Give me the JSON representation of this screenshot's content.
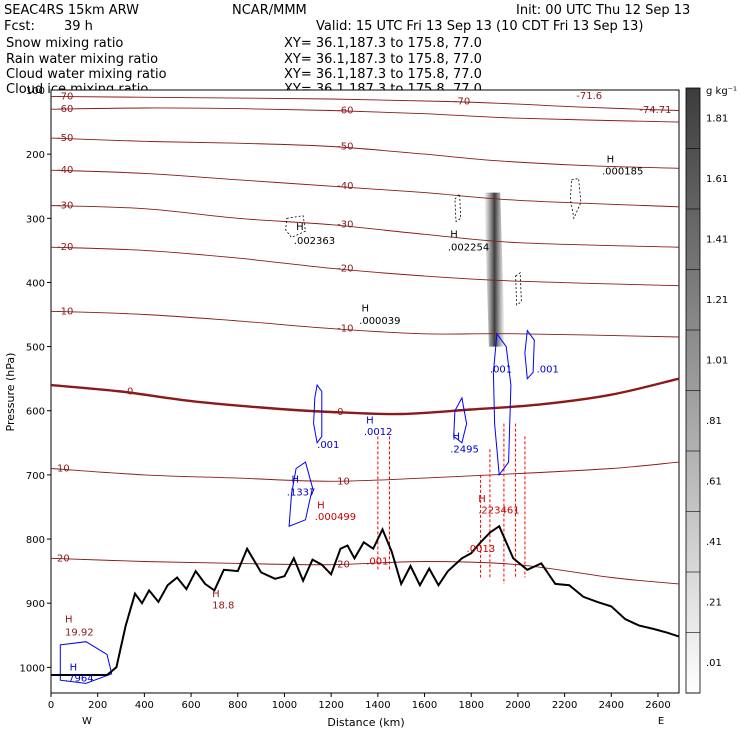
{
  "header": {
    "model": "SEAC4RS 15km ARW",
    "org": "NCAR/MMM",
    "init": "Init: 00 UTC Thu 12 Sep 13",
    "fcst_label": "Fcst:",
    "fcst_value": "39 h",
    "valid": "Valid: 15 UTC Fri 13 Sep 13 (10 CDT Fri 13 Sep 13)"
  },
  "fields": [
    {
      "name": "Snow mixing ratio",
      "xy": "XY=  36.1,187.3 to 175.8, 77.0",
      "color": "#000000"
    },
    {
      "name": "Rain water mixing ratio",
      "xy": "XY=  36.1,187.3 to 175.8, 77.0",
      "color": "#ff0000"
    },
    {
      "name": "Cloud water mixing ratio",
      "xy": "XY=  36.1,187.3 to 175.8, 77.0",
      "color": "#0000ff"
    },
    {
      "name": "Cloud ice mixing ratio",
      "xy": "XY=  36.1,187.3 to 175.8, 77.0",
      "color": "#000000"
    }
  ],
  "chart_data": {
    "type": "cross-section",
    "xlabel": "Distance (km)",
    "ylabel": "Pressure (hPa)",
    "x_ticks": [
      0,
      200,
      400,
      600,
      800,
      1000,
      1200,
      1400,
      1600,
      1800,
      2000,
      2200,
      2400,
      2600
    ],
    "y_ticks": [
      200,
      300,
      400,
      500,
      600,
      700,
      800,
      900,
      1000
    ],
    "y_top_label": "100",
    "xlim": [
      0,
      2690
    ],
    "ylim": [
      100,
      1040
    ],
    "west_label": "W",
    "east_label": "E",
    "colorbar": {
      "unit": "g kg⁻¹",
      "labels": [
        ".01",
        ".21",
        ".41",
        ".61",
        ".81",
        "1.01",
        "1.21",
        "1.41",
        "1.61",
        "1.81"
      ]
    },
    "temperature_contours": {
      "color": "#8b1a1a",
      "levels": [
        {
          "label": "-70",
          "pts": [
            [
              0,
              110
            ],
            [
              600,
              112
            ],
            [
              1200,
              114
            ],
            [
              1700,
              118
            ],
            [
              2000,
              122
            ],
            [
              2300,
              127
            ],
            [
              2690,
              132
            ]
          ]
        },
        {
          "label": "-60",
          "pts": [
            [
              0,
              130
            ],
            [
              400,
              128
            ],
            [
              800,
              129
            ],
            [
              1200,
              132
            ],
            [
              1600,
              137
            ],
            [
              2000,
              144
            ],
            [
              2690,
              150
            ]
          ]
        },
        {
          "label": "-50",
          "pts": [
            [
              0,
              175
            ],
            [
              400,
              180
            ],
            [
              800,
              183
            ],
            [
              1200,
              188
            ],
            [
              1600,
              200
            ],
            [
              1900,
              210
            ],
            [
              2300,
              218
            ],
            [
              2690,
              222
            ]
          ]
        },
        {
          "label": "-40",
          "pts": [
            [
              0,
              225
            ],
            [
              400,
              230
            ],
            [
              800,
              240
            ],
            [
              1200,
              250
            ],
            [
              1600,
              260
            ],
            [
              2000,
              272
            ],
            [
              2690,
              282
            ]
          ]
        },
        {
          "label": "-30",
          "pts": [
            [
              0,
              280
            ],
            [
              400,
              285
            ],
            [
              800,
              300
            ],
            [
              1200,
              310
            ],
            [
              1600,
              325
            ],
            [
              2000,
              338
            ],
            [
              2690,
              345
            ]
          ]
        },
        {
          "label": "-20",
          "pts": [
            [
              0,
              345
            ],
            [
              400,
              350
            ],
            [
              800,
              362
            ],
            [
              1200,
              378
            ],
            [
              1600,
              390
            ],
            [
              2000,
              398
            ],
            [
              2690,
              405
            ]
          ]
        },
        {
          "label": "-10",
          "pts": [
            [
              0,
              445
            ],
            [
              400,
              450
            ],
            [
              800,
              460
            ],
            [
              1200,
              472
            ],
            [
              1600,
              480
            ],
            [
              2000,
              480
            ],
            [
              2690,
              485
            ]
          ]
        },
        {
          "label": "0",
          "bold": true,
          "pts": [
            [
              0,
              560
            ],
            [
              300,
              570
            ],
            [
              600,
              585
            ],
            [
              900,
              595
            ],
            [
              1200,
              602
            ],
            [
              1500,
              605
            ],
            [
              1800,
              598
            ],
            [
              2100,
              590
            ],
            [
              2400,
              575
            ],
            [
              2690,
              550
            ]
          ]
        },
        {
          "label": "10",
          "pts": [
            [
              0,
              690
            ],
            [
              400,
              700
            ],
            [
              800,
              705
            ],
            [
              1200,
              710
            ],
            [
              1600,
              705
            ],
            [
              2000,
              698
            ],
            [
              2400,
              690
            ],
            [
              2690,
              680
            ]
          ]
        },
        {
          "label": "20",
          "pts": [
            [
              0,
              830
            ],
            [
              400,
              835
            ],
            [
              800,
              838
            ],
            [
              1200,
              840
            ],
            [
              1600,
              835
            ],
            [
              2000,
              840
            ],
            [
              2400,
              860
            ],
            [
              2690,
              870
            ]
          ]
        }
      ]
    },
    "terrain": {
      "color": "#000000",
      "pts": [
        [
          0,
          1012
        ],
        [
          100,
          1012
        ],
        [
          240,
          1012
        ],
        [
          280,
          1000
        ],
        [
          320,
          935
        ],
        [
          360,
          885
        ],
        [
          390,
          900
        ],
        [
          420,
          880
        ],
        [
          460,
          898
        ],
        [
          500,
          872
        ],
        [
          540,
          860
        ],
        [
          580,
          878
        ],
        [
          620,
          850
        ],
        [
          660,
          870
        ],
        [
          700,
          880
        ],
        [
          740,
          848
        ],
        [
          800,
          850
        ],
        [
          840,
          815
        ],
        [
          900,
          852
        ],
        [
          960,
          862
        ],
        [
          1000,
          858
        ],
        [
          1040,
          830
        ],
        [
          1080,
          865
        ],
        [
          1120,
          832
        ],
        [
          1160,
          840
        ],
        [
          1200,
          855
        ],
        [
          1240,
          815
        ],
        [
          1270,
          810
        ],
        [
          1300,
          830
        ],
        [
          1340,
          805
        ],
        [
          1380,
          815
        ],
        [
          1420,
          785
        ],
        [
          1460,
          820
        ],
        [
          1500,
          870
        ],
        [
          1540,
          842
        ],
        [
          1580,
          872
        ],
        [
          1620,
          846
        ],
        [
          1660,
          872
        ],
        [
          1700,
          850
        ],
        [
          1760,
          830
        ],
        [
          1800,
          822
        ],
        [
          1840,
          805
        ],
        [
          1880,
          790
        ],
        [
          1920,
          780
        ],
        [
          1980,
          830
        ],
        [
          2040,
          848
        ],
        [
          2100,
          838
        ],
        [
          2160,
          870
        ],
        [
          2220,
          872
        ],
        [
          2280,
          890
        ],
        [
          2340,
          898
        ],
        [
          2400,
          905
        ],
        [
          2460,
          925
        ],
        [
          2520,
          935
        ],
        [
          2580,
          940
        ],
        [
          2640,
          946
        ],
        [
          2690,
          952
        ]
      ]
    },
    "snow_band": {
      "x_top": 1890,
      "p_top": 260,
      "x_bot": 1910,
      "p_bot": 500,
      "color": "#333333"
    },
    "annotations": [
      {
        "text": "-74.71",
        "x": 2520,
        "p": 136,
        "color": "#8b1a1a"
      },
      {
        "text": "-71.6",
        "x": 2250,
        "p": 114,
        "color": "#8b1a1a"
      },
      {
        "text": "H",
        "x": 2380,
        "p": 213,
        "color": "#000000"
      },
      {
        "text": ".000185",
        "x": 2360,
        "p": 232,
        "color": "#000000"
      },
      {
        "text": "H",
        "x": 1050,
        "p": 318,
        "color": "#000000"
      },
      {
        "text": ".002363",
        "x": 1040,
        "p": 340,
        "color": "#000000"
      },
      {
        "text": "H",
        "x": 1710,
        "p": 330,
        "color": "#000000"
      },
      {
        "text": ".002254",
        "x": 1700,
        "p": 350,
        "color": "#000000"
      },
      {
        "text": "H",
        "x": 1330,
        "p": 445,
        "color": "#000000"
      },
      {
        "text": ".000039",
        "x": 1320,
        "p": 465,
        "color": "#000000"
      },
      {
        "text": ".001",
        "x": 1880,
        "p": 540,
        "color": "#0000cc"
      },
      {
        "text": ".001",
        "x": 2080,
        "p": 540,
        "color": "#0000cc"
      },
      {
        "text": ".001",
        "x": 1140,
        "p": 658,
        "color": "#0000cc"
      },
      {
        "text": "H",
        "x": 1350,
        "p": 620,
        "color": "#0000cc"
      },
      {
        "text": ".0012",
        "x": 1340,
        "p": 638,
        "color": "#0000cc"
      },
      {
        "text": "H",
        "x": 1030,
        "p": 712,
        "color": "#0000cc"
      },
      {
        "text": ".1337",
        "x": 1010,
        "p": 732,
        "color": "#0000cc"
      },
      {
        "text": "H",
        "x": 1720,
        "p": 645,
        "color": "#0000cc"
      },
      {
        "text": ".2495",
        "x": 1710,
        "p": 665,
        "color": "#0000cc"
      },
      {
        "text": "H",
        "x": 1140,
        "p": 752,
        "color": "#cc0000"
      },
      {
        "text": ".000499",
        "x": 1130,
        "p": 770,
        "color": "#cc0000"
      },
      {
        "text": "H",
        "x": 1830,
        "p": 742,
        "color": "#cc0000"
      },
      {
        "text": ".223461",
        "x": 1830,
        "p": 760,
        "color": "#cc0000"
      },
      {
        "text": ".0013",
        "x": 1780,
        "p": 820,
        "color": "#cc0000"
      },
      {
        "text": ".001",
        "x": 1350,
        "p": 840,
        "color": "#cc0000"
      },
      {
        "text": "H",
        "x": 690,
        "p": 890,
        "color": "#8b1a1a"
      },
      {
        "text": "18.8",
        "x": 690,
        "p": 908,
        "color": "#8b1a1a"
      },
      {
        "text": "H",
        "x": 60,
        "p": 930,
        "color": "#8b1a1a"
      },
      {
        "text": "19.92",
        "x": 60,
        "p": 950,
        "color": "#8b1a1a"
      },
      {
        "text": "H",
        "x": 80,
        "p": 1005,
        "color": "#0000cc"
      },
      {
        "text": ".7964",
        "x": 60,
        "p": 1022,
        "color": "#0000cc"
      }
    ],
    "rain_columns": [
      {
        "x": 1400,
        "p1": 640,
        "p2": 850
      },
      {
        "x": 1450,
        "p1": 640,
        "p2": 850
      },
      {
        "x": 1840,
        "p1": 700,
        "p2": 860
      },
      {
        "x": 1880,
        "p1": 660,
        "p2": 860
      },
      {
        "x": 1940,
        "p1": 620,
        "p2": 870
      },
      {
        "x": 1990,
        "p1": 620,
        "p2": 860
      },
      {
        "x": 2030,
        "p1": 640,
        "p2": 860
      }
    ],
    "cloud_water_loops": [
      [
        [
          1140,
          560
        ],
        [
          1160,
          570
        ],
        [
          1160,
          640
        ],
        [
          1140,
          650
        ],
        [
          1125,
          620
        ],
        [
          1130,
          580
        ]
      ],
      [
        [
          1050,
          690
        ],
        [
          1090,
          680
        ],
        [
          1120,
          720
        ],
        [
          1090,
          770
        ],
        [
          1020,
          780
        ],
        [
          1030,
          730
        ]
      ],
      [
        [
          1910,
          480
        ],
        [
          1950,
          500
        ],
        [
          1970,
          560
        ],
        [
          1960,
          680
        ],
        [
          1920,
          700
        ],
        [
          1900,
          620
        ],
        [
          1895,
          540
        ]
      ],
      [
        [
          2040,
          475
        ],
        [
          2070,
          490
        ],
        [
          2065,
          540
        ],
        [
          2040,
          550
        ],
        [
          2030,
          510
        ]
      ],
      [
        [
          1730,
          600
        ],
        [
          1760,
          580
        ],
        [
          1780,
          620
        ],
        [
          1760,
          650
        ],
        [
          1725,
          640
        ]
      ],
      [
        [
          40,
          965
        ],
        [
          150,
          960
        ],
        [
          240,
          980
        ],
        [
          260,
          1010
        ],
        [
          150,
          1025
        ],
        [
          40,
          1020
        ]
      ]
    ],
    "cloud_ice_loops": [
      [
        [
          1010,
          300
        ],
        [
          1080,
          296
        ],
        [
          1090,
          320
        ],
        [
          1030,
          330
        ],
        [
          1005,
          318
        ]
      ],
      [
        [
          2230,
          240
        ],
        [
          2260,
          238
        ],
        [
          2270,
          275
        ],
        [
          2240,
          300
        ],
        [
          2225,
          270
        ]
      ],
      [
        [
          1730,
          270
        ],
        [
          1750,
          262
        ],
        [
          1755,
          300
        ],
        [
          1735,
          305
        ]
      ],
      [
        [
          1990,
          390
        ],
        [
          2010,
          385
        ],
        [
          2015,
          430
        ],
        [
          1995,
          435
        ]
      ]
    ]
  }
}
